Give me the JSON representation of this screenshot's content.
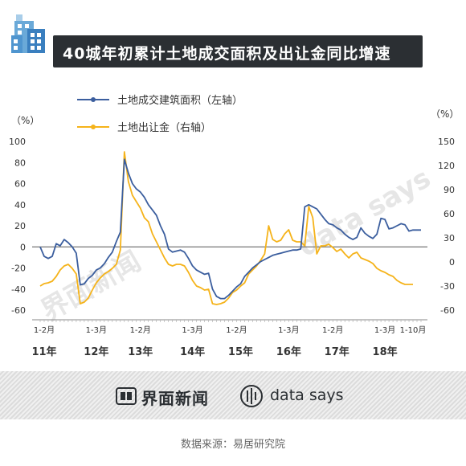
{
  "title": "40城年初累计土地成交面积及出让金同比增速",
  "footer": {
    "brand_left": "界面新闻",
    "brand_right": "data says"
  },
  "source": "数据来源：易居研究院",
  "colors": {
    "area": "#3b5e9e",
    "money": "#f5b31a",
    "title_bg": "#2b2f33",
    "text": "#333333"
  },
  "chart_data": {
    "type": "line",
    "left_unit": "（%）",
    "right_unit": "（%）",
    "left_ylim": [
      -60,
      100
    ],
    "left_ticks": [
      "100",
      "80",
      "60",
      "40",
      "20",
      "0",
      "-20",
      "-40",
      "-60"
    ],
    "right_ylim": [
      -60,
      150
    ],
    "right_ticks": [
      "150",
      "120",
      "90",
      "60",
      "30",
      "0",
      "-30",
      "-60"
    ],
    "month_labels": [
      {
        "text": "1-2月",
        "i": 1
      },
      {
        "text": "1-3月",
        "i": 14
      },
      {
        "text": "1-2月",
        "i": 25
      },
      {
        "text": "1-3月",
        "i": 38
      },
      {
        "text": "1-2月",
        "i": 49
      },
      {
        "text": "1-3月",
        "i": 62
      },
      {
        "text": "1-2月",
        "i": 73
      },
      {
        "text": "1-3月",
        "i": 86
      },
      {
        "text": "1-10月",
        "i": 93
      }
    ],
    "year_labels": [
      {
        "text": "11年",
        "i": 1
      },
      {
        "text": "12年",
        "i": 14
      },
      {
        "text": "13年",
        "i": 25
      },
      {
        "text": "14年",
        "i": 38
      },
      {
        "text": "15年",
        "i": 50
      },
      {
        "text": "16年",
        "i": 62
      },
      {
        "text": "17年",
        "i": 74
      },
      {
        "text": "18年",
        "i": 86
      }
    ],
    "series": [
      {
        "name": "土地成交建筑面积（左轴）",
        "axis": "left",
        "values": [
          0,
          -9,
          -11,
          -9,
          3,
          1,
          7,
          4,
          0,
          -6,
          -36,
          -35,
          -30,
          -27,
          -22,
          -20,
          -16,
          -10,
          -5,
          5,
          14,
          83,
          70,
          60,
          55,
          52,
          47,
          40,
          35,
          30,
          20,
          12,
          -2,
          -5,
          -4,
          -3,
          -5,
          -11,
          -18,
          -22,
          -24,
          -26,
          -25,
          -40,
          -47,
          -49,
          -49,
          -46,
          -42,
          -38,
          -35,
          -28,
          -24,
          -20,
          -17,
          -14,
          -12,
          -10,
          -8,
          -7,
          -6,
          -5,
          -4,
          -3,
          -3,
          -2,
          38,
          40,
          38,
          36,
          31,
          26,
          22,
          21,
          18,
          16,
          12,
          9,
          7,
          9,
          18,
          13,
          10,
          8,
          12,
          27,
          26,
          17,
          18,
          20,
          22,
          21,
          15,
          16,
          16,
          16
        ],
        "x": null
      },
      {
        "name": "土地出让金（右轴）",
        "axis": "right",
        "values": [
          -30,
          -27,
          -26,
          -24,
          -18,
          -10,
          -5,
          -3,
          -8,
          -15,
          -52,
          -50,
          -45,
          -35,
          -26,
          -20,
          -15,
          -12,
          -8,
          -3,
          15,
          137,
          100,
          83,
          75,
          67,
          55,
          50,
          35,
          25,
          15,
          5,
          -3,
          -5,
          -3,
          -3,
          -5,
          -13,
          -23,
          -30,
          -32,
          -35,
          -34,
          -52,
          -53,
          -52,
          -50,
          -45,
          -38,
          -35,
          -30,
          -26,
          -15,
          -10,
          -5,
          2,
          10,
          45,
          28,
          25,
          27,
          35,
          40,
          27,
          25,
          25,
          20,
          69,
          55,
          10,
          20,
          20,
          22,
          18,
          13,
          16,
          10,
          5,
          10,
          12,
          5,
          3,
          1,
          -2,
          -8,
          -11,
          -13,
          -16,
          -18,
          -23,
          -26,
          -28,
          -28,
          -28
        ]
      }
    ],
    "legend": [
      {
        "label": "土地成交建筑面积（左轴）",
        "color": "#3b5e9e"
      },
      {
        "label": "土地出让金（右轴）",
        "color": "#f5b31a"
      }
    ],
    "legend_placement": "top-left",
    "grid": false
  }
}
